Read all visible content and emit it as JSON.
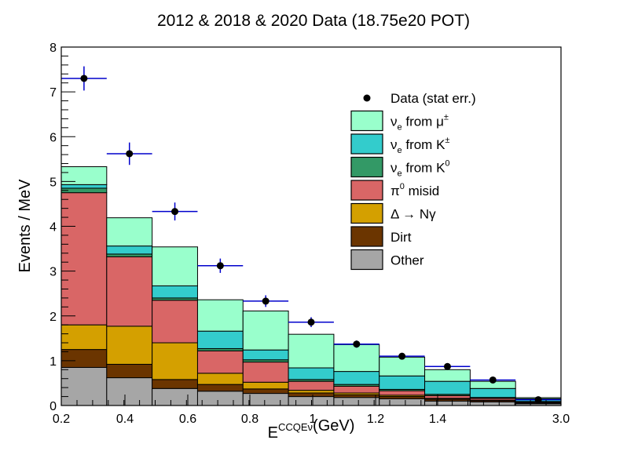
{
  "chart_data": {
    "type": "bar",
    "title": "2012 & 2018 & 2020 Data (18.75e20 POT)",
    "xlabel_main": "E",
    "xlabel_sub": "ν",
    "xlabel_sup": "CCQE",
    "xlabel_unit": "(GeV)",
    "ylabel": "Events / MeV",
    "ylim": [
      0,
      8
    ],
    "bin_edges": [
      0.2,
      0.3,
      0.375,
      0.475,
      0.55,
      0.675,
      0.8,
      0.95,
      1.1,
      1.3,
      1.5,
      3.0
    ],
    "x_tick_labels": [
      "0.2",
      "0.4",
      "0.6",
      "0.8",
      "1",
      "1.2",
      "1.4",
      "3.0"
    ],
    "y_tick_labels": [
      "0",
      "1",
      "2",
      "3",
      "4",
      "5",
      "6",
      "7",
      "8"
    ],
    "stack": [
      {
        "name": "Other",
        "color": "#a6a6a6",
        "values": [
          0.85,
          0.62,
          0.38,
          0.32,
          0.27,
          0.2,
          0.18,
          0.15,
          0.1,
          0.08,
          0.04
        ]
      },
      {
        "name": "Dirt",
        "color": "#6b3500",
        "values": [
          0.4,
          0.3,
          0.2,
          0.15,
          0.1,
          0.08,
          0.06,
          0.05,
          0.04,
          0.03,
          0.015
        ]
      },
      {
        "name": "Δ → Nγ",
        "color": "#d4a000",
        "values": [
          0.55,
          0.85,
          0.82,
          0.25,
          0.15,
          0.06,
          0.04,
          0.03,
          0.02,
          0.01,
          0.005
        ]
      },
      {
        "name": "π0 misid",
        "color": "#d96666",
        "values": [
          2.95,
          1.55,
          0.95,
          0.5,
          0.45,
          0.2,
          0.15,
          0.1,
          0.06,
          0.04,
          0.02
        ]
      },
      {
        "name": "νe from K0",
        "color": "#339966",
        "values": [
          0.1,
          0.06,
          0.05,
          0.05,
          0.05,
          0.04,
          0.04,
          0.03,
          0.03,
          0.02,
          0.01
        ]
      },
      {
        "name": "νe from K±",
        "color": "#33cccc",
        "values": [
          0.08,
          0.18,
          0.27,
          0.39,
          0.22,
          0.26,
          0.29,
          0.3,
          0.29,
          0.2,
          0.06
        ]
      },
      {
        "name": "νe from μ±",
        "color": "#99ffcc",
        "values": [
          0.4,
          0.63,
          0.87,
          0.7,
          0.87,
          0.75,
          0.6,
          0.42,
          0.26,
          0.16,
          0.025
        ]
      }
    ],
    "data_points": {
      "name": "Data (stat err.)",
      "x": [
        0.25,
        0.3375,
        0.425,
        0.5125,
        0.6125,
        0.7375,
        0.875,
        1.025,
        1.2,
        1.4,
        2.25
      ],
      "y": [
        7.3,
        5.62,
        4.33,
        3.12,
        2.33,
        1.86,
        1.37,
        1.1,
        0.87,
        0.57,
        0.13
      ],
      "err": [
        0.27,
        0.25,
        0.2,
        0.16,
        0.13,
        0.11,
        0.08,
        0.07,
        0.06,
        0.05,
        0.02
      ]
    },
    "legend": {
      "placement": "top-right",
      "entries": [
        {
          "text": "Data (stat err.)",
          "kind": "marker"
        },
        {
          "base": "ν",
          "sub": "e",
          "rest": " from μ",
          "sup": "±",
          "color": "#99ffcc"
        },
        {
          "base": "ν",
          "sub": "e",
          "rest": " from K",
          "sup": "±",
          "color": "#33cccc"
        },
        {
          "base": "ν",
          "sub": "e",
          "rest": " from K",
          "sup": "0",
          "color": "#339966"
        },
        {
          "base": "π",
          "sup": "0",
          "rest": " misid",
          "color": "#d96666"
        },
        {
          "base": "Δ → Nγ",
          "color": "#d4a000"
        },
        {
          "base": "Dirt",
          "color": "#6b3500"
        },
        {
          "base": "Other",
          "color": "#a6a6a6"
        }
      ]
    },
    "colors": {
      "data_marker": "#000000",
      "error_bar": "#0000cc"
    }
  }
}
